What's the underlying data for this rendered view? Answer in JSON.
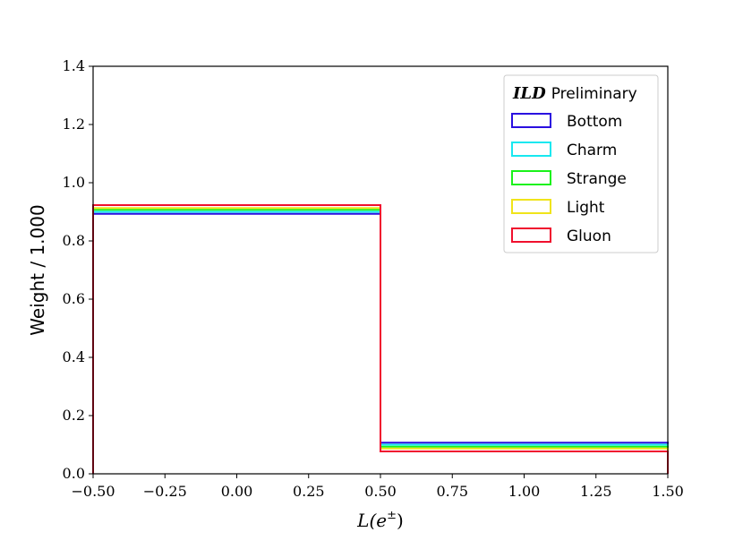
{
  "chart_data": {
    "type": "histogram-step",
    "xlabel_base": "L(e",
    "xlabel_sup": "±",
    "xlabel_close": ")",
    "ylabel": "Weight / 1.000",
    "xlim": [
      -0.5,
      1.5
    ],
    "ylim": [
      0.0,
      1.4
    ],
    "xticks": [
      -0.5,
      -0.25,
      0.0,
      0.25,
      0.5,
      0.75,
      1.0,
      1.25,
      1.5
    ],
    "xtick_labels": [
      "−0.50",
      "−0.25",
      "0.00",
      "0.25",
      "0.50",
      "0.75",
      "1.00",
      "1.25",
      "1.50"
    ],
    "yticks": [
      0.0,
      0.2,
      0.4,
      0.6,
      0.8,
      1.0,
      1.2,
      1.4
    ],
    "ytick_labels": [
      "0.0",
      "0.2",
      "0.4",
      "0.6",
      "0.8",
      "1.0",
      "1.2",
      "1.4"
    ],
    "bin_edges": [
      -0.5,
      0.5,
      1.5
    ],
    "legend": {
      "placement": "top-right",
      "title_bold": "ILD",
      "title_rest": "Preliminary"
    },
    "series": [
      {
        "name": "Bottom",
        "color": "#2a0fe0",
        "values": [
          0.893,
          0.107
        ]
      },
      {
        "name": "Charm",
        "color": "#18e8f0",
        "values": [
          0.9,
          0.1
        ]
      },
      {
        "name": "Strange",
        "color": "#1af21a",
        "values": [
          0.907,
          0.093
        ]
      },
      {
        "name": "Light",
        "color": "#f0e41a",
        "values": [
          0.913,
          0.087
        ]
      },
      {
        "name": "Gluon",
        "color": "#f0102e",
        "values": [
          0.923,
          0.077
        ]
      }
    ]
  }
}
